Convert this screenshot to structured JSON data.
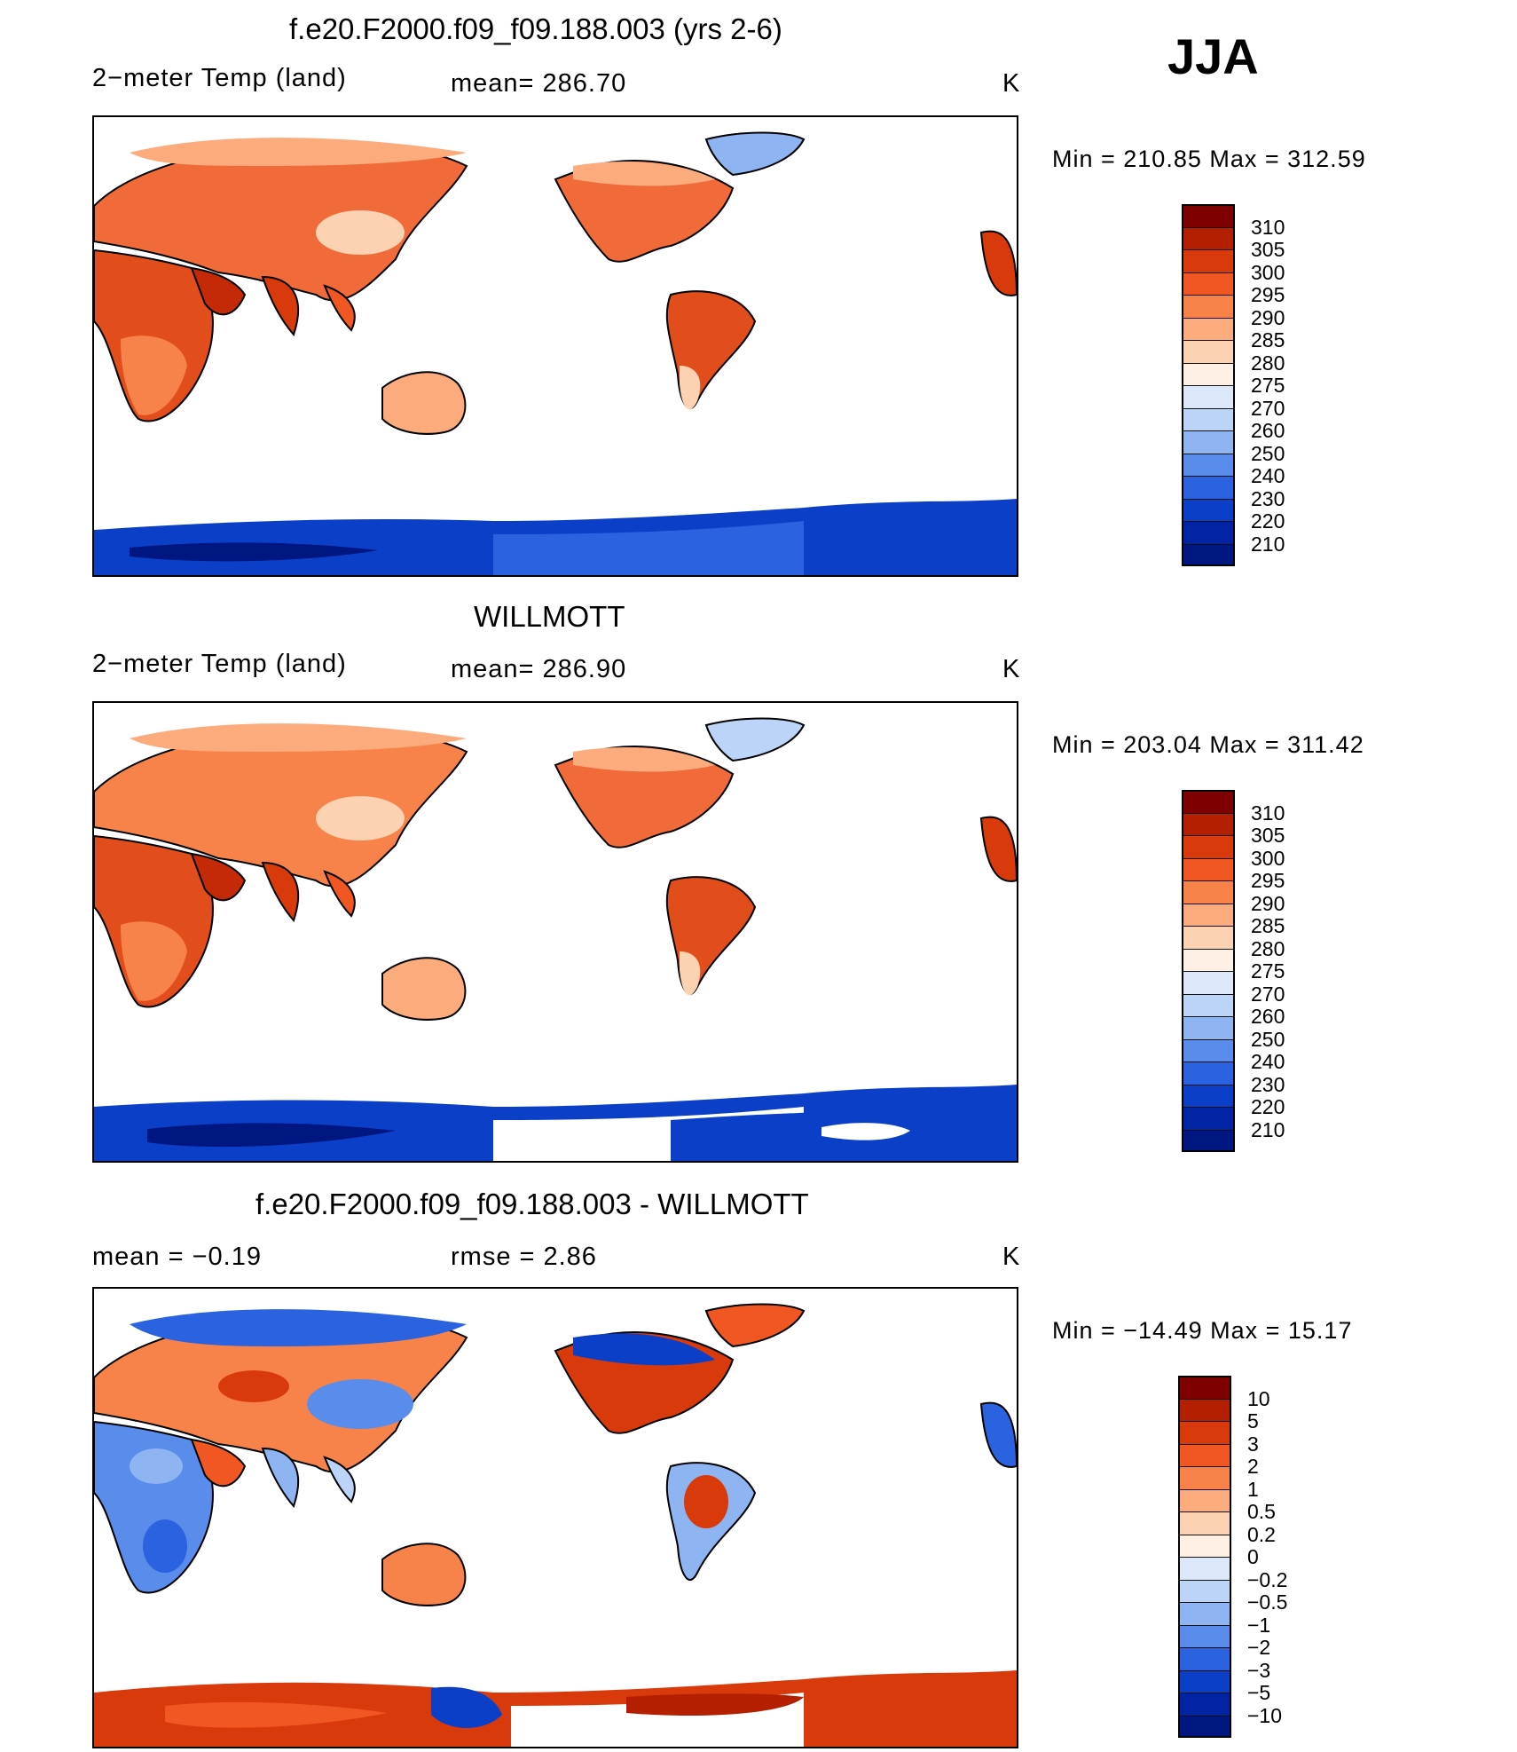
{
  "season": "JJA",
  "panels": [
    {
      "title": "f.e20.F2000.f09_f09.188.003 (yrs 2-6)",
      "left_label": "2−meter Temp (land)",
      "center_label": "mean= 286.70",
      "units": "K",
      "minmax": "Min = 210.85 Max = 312.59",
      "colorbar": {
        "labels": [
          "310",
          "305",
          "300",
          "295",
          "290",
          "285",
          "280",
          "275",
          "270",
          "260",
          "250",
          "240",
          "230",
          "220",
          "210"
        ],
        "colors": [
          "#7f0000",
          "#b31f00",
          "#d93a0c",
          "#f05722",
          "#f7834a",
          "#fbab7c",
          "#fdd2b2",
          "#fef0e4",
          "#dde9fb",
          "#bcd4f8",
          "#8eb4f2",
          "#5a8ceb",
          "#2a62e0",
          "#0b3fc8",
          "#0024a3",
          "#001680"
        ]
      },
      "icons": [
        "continent-map-icon"
      ]
    },
    {
      "title": "WILLMOTT",
      "left_label": "2−meter Temp (land)",
      "center_label": "mean= 286.90",
      "units": "K",
      "minmax": "Min = 203.04 Max = 311.42",
      "colorbar": {
        "labels": [
          "310",
          "305",
          "300",
          "295",
          "290",
          "285",
          "280",
          "275",
          "270",
          "260",
          "250",
          "240",
          "230",
          "220",
          "210"
        ],
        "colors": [
          "#7f0000",
          "#b31f00",
          "#d93a0c",
          "#f05722",
          "#f7834a",
          "#fbab7c",
          "#fdd2b2",
          "#fef0e4",
          "#dde9fb",
          "#bcd4f8",
          "#8eb4f2",
          "#5a8ceb",
          "#2a62e0",
          "#0b3fc8",
          "#0024a3",
          "#001680"
        ]
      },
      "icons": [
        "continent-map-icon"
      ]
    },
    {
      "title": "f.e20.F2000.f09_f09.188.003 - WILLMOTT",
      "left_label": "mean =    −0.19",
      "center_label": "rmse =     2.86",
      "units": "K",
      "minmax": "Min = −14.49 Max =   15.17",
      "colorbar": {
        "labels": [
          "10",
          "5",
          "3",
          "2",
          "1",
          "0.5",
          "0.2",
          "0",
          "−0.2",
          "−0.5",
          "−1",
          "−2",
          "−3",
          "−5",
          "−10"
        ],
        "colors": [
          "#7f0000",
          "#b31f00",
          "#d93a0c",
          "#f05722",
          "#f7834a",
          "#fbab7c",
          "#fdd2b2",
          "#fef0e4",
          "#dde9fb",
          "#bcd4f8",
          "#8eb4f2",
          "#5a8ceb",
          "#2a62e0",
          "#0b3fc8",
          "#0024a3",
          "#001680"
        ]
      },
      "icons": [
        "continent-map-icon"
      ]
    }
  ]
}
